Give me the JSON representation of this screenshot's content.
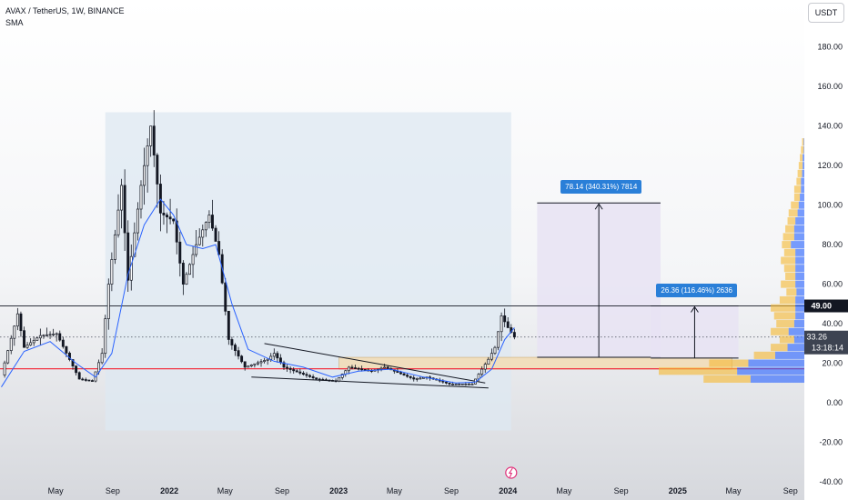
{
  "header": {
    "symbol_line": "AVAX / TetherUS, 1W, BINANCE",
    "indicator": "SMA",
    "currency_button": "USDT"
  },
  "badges": {
    "level": "49.00",
    "last_price": "33.26",
    "countdown": "13:18:14"
  },
  "measures": [
    {
      "label": "78.14 (340.31%) 7814",
      "start": 23.0,
      "end": 101.1
    },
    {
      "label": "26.36 (116.46%) 2636",
      "start": 22.6,
      "end": 49.0
    }
  ],
  "chart_data": {
    "type": "candlestick",
    "ylim": [
      -40,
      190
    ],
    "y_ticks": [
      180,
      160,
      140,
      120,
      100,
      80,
      60,
      40,
      20,
      0,
      -20,
      -40
    ],
    "y_tick_labels": [
      "180.00",
      "160.00",
      "140.00",
      "120.00",
      "100.00",
      "80.00",
      "60.00",
      "40.00",
      "20.00",
      "0.00",
      "-20.00",
      "-40.00"
    ],
    "x_labels": [
      "May",
      "Sep",
      "2022",
      "May",
      "Sep",
      "2023",
      "May",
      "Sep",
      "2024",
      "May",
      "Sep",
      "2025",
      "May",
      "Sep"
    ],
    "x_label_dates": [
      "2021-05-01",
      "2021-09-01",
      "2022-01-01",
      "2022-05-01",
      "2022-09-01",
      "2023-01-01",
      "2023-05-01",
      "2023-09-01",
      "2024-01-01",
      "2024-05-01",
      "2024-09-01",
      "2025-01-01",
      "2025-05-01",
      "2025-09-01"
    ],
    "x_range": [
      "2021-01-01",
      "2025-10-01"
    ],
    "horizontal_levels": [
      {
        "value": 49.0,
        "color": "#131722"
      },
      {
        "value": 17.2,
        "color": "#f23645"
      }
    ],
    "last_price": 33.26,
    "key_points": [
      {
        "date": "2021-01-04",
        "price": 14
      },
      {
        "date": "2021-02-08",
        "price": 45
      },
      {
        "date": "2021-02-22",
        "price": 28
      },
      {
        "date": "2021-03-29",
        "price": 34
      },
      {
        "date": "2021-05-03",
        "price": 35
      },
      {
        "date": "2021-06-21",
        "price": 12
      },
      {
        "date": "2021-07-19",
        "price": 11
      },
      {
        "date": "2021-08-09",
        "price": 25
      },
      {
        "date": "2021-08-23",
        "price": 60
      },
      {
        "date": "2021-09-20",
        "price": 110
      },
      {
        "date": "2021-10-04",
        "price": 62
      },
      {
        "date": "2021-11-01",
        "price": 110
      },
      {
        "date": "2021-11-22",
        "price": 140
      },
      {
        "date": "2021-12-13",
        "price": 96
      },
      {
        "date": "2022-01-10",
        "price": 92
      },
      {
        "date": "2022-01-31",
        "price": 60
      },
      {
        "date": "2022-02-28",
        "price": 80
      },
      {
        "date": "2022-03-28",
        "price": 95
      },
      {
        "date": "2022-04-18",
        "price": 75
      },
      {
        "date": "2022-05-09",
        "price": 32
      },
      {
        "date": "2022-06-13",
        "price": 18
      },
      {
        "date": "2022-08-01",
        "price": 22
      },
      {
        "date": "2022-08-15",
        "price": 25
      },
      {
        "date": "2022-09-05",
        "price": 18
      },
      {
        "date": "2022-11-14",
        "price": 12
      },
      {
        "date": "2022-12-26",
        "price": 11
      },
      {
        "date": "2023-01-23",
        "price": 18
      },
      {
        "date": "2023-03-13",
        "price": 16
      },
      {
        "date": "2023-04-10",
        "price": 18
      },
      {
        "date": "2023-06-12",
        "price": 12
      },
      {
        "date": "2023-07-10",
        "price": 13
      },
      {
        "date": "2023-08-28",
        "price": 9.5
      },
      {
        "date": "2023-10-16",
        "price": 9.5
      },
      {
        "date": "2023-11-06",
        "price": 17
      },
      {
        "date": "2023-11-20",
        "price": 22
      },
      {
        "date": "2023-12-04",
        "price": 28
      },
      {
        "date": "2023-12-18",
        "price": 44
      },
      {
        "date": "2024-01-01",
        "price": 38
      },
      {
        "date": "2024-01-15",
        "price": 33.26
      }
    ],
    "sma_points": [
      {
        "date": "2021-01-04",
        "price": 8
      },
      {
        "date": "2021-02-22",
        "price": 26
      },
      {
        "date": "2021-04-19",
        "price": 31
      },
      {
        "date": "2021-06-14",
        "price": 20
      },
      {
        "date": "2021-07-26",
        "price": 13
      },
      {
        "date": "2021-08-30",
        "price": 25
      },
      {
        "date": "2021-10-04",
        "price": 65
      },
      {
        "date": "2021-11-08",
        "price": 90
      },
      {
        "date": "2021-12-13",
        "price": 103
      },
      {
        "date": "2022-01-10",
        "price": 95
      },
      {
        "date": "2022-02-07",
        "price": 80
      },
      {
        "date": "2022-03-14",
        "price": 78
      },
      {
        "date": "2022-04-11",
        "price": 80
      },
      {
        "date": "2022-05-16",
        "price": 50
      },
      {
        "date": "2022-06-20",
        "price": 27
      },
      {
        "date": "2022-08-15",
        "price": 21
      },
      {
        "date": "2022-10-17",
        "price": 18
      },
      {
        "date": "2022-12-19",
        "price": 13
      },
      {
        "date": "2023-02-13",
        "price": 16
      },
      {
        "date": "2023-04-24",
        "price": 17
      },
      {
        "date": "2023-07-03",
        "price": 13
      },
      {
        "date": "2023-09-11",
        "price": 10
      },
      {
        "date": "2023-10-23",
        "price": 10.5
      },
      {
        "date": "2023-11-27",
        "price": 17
      },
      {
        "date": "2023-12-25",
        "price": 32
      },
      {
        "date": "2024-01-15",
        "price": 38
      }
    ],
    "series": [
      {
        "name": "SMA",
        "color": "#2962ff"
      }
    ]
  },
  "volume_profile": [
    {
      "price": 132,
      "total": 2,
      "up": 0.5
    },
    {
      "price": 128,
      "total": 3,
      "up": 0.5
    },
    {
      "price": 124,
      "total": 4,
      "up": 1.5
    },
    {
      "price": 120,
      "total": 5,
      "up": 1.5
    },
    {
      "price": 116,
      "total": 6,
      "up": 2
    },
    {
      "price": 112,
      "total": 7,
      "up": 3
    },
    {
      "price": 108,
      "total": 9,
      "up": 3
    },
    {
      "price": 104,
      "total": 9,
      "up": 4
    },
    {
      "price": 100,
      "total": 12,
      "up": 5
    },
    {
      "price": 96,
      "total": 14,
      "up": 6
    },
    {
      "price": 92,
      "total": 15,
      "up": 8
    },
    {
      "price": 88,
      "total": 17,
      "up": 9
    },
    {
      "price": 84,
      "total": 19,
      "up": 9
    },
    {
      "price": 80,
      "total": 20,
      "up": 12
    },
    {
      "price": 76,
      "total": 18,
      "up": 8
    },
    {
      "price": 72,
      "total": 21,
      "up": 8
    },
    {
      "price": 68,
      "total": 18,
      "up": 8
    },
    {
      "price": 64,
      "total": 17,
      "up": 8
    },
    {
      "price": 60,
      "total": 21,
      "up": 8
    },
    {
      "price": 56,
      "total": 16,
      "up": 7
    },
    {
      "price": 52,
      "total": 22,
      "up": 8
    },
    {
      "price": 48,
      "total": 30,
      "up": 8
    },
    {
      "price": 44,
      "total": 27,
      "up": 8
    },
    {
      "price": 40,
      "total": 25,
      "up": 9
    },
    {
      "price": 36,
      "total": 30,
      "up": 14
    },
    {
      "price": 32,
      "total": 22,
      "up": 9
    },
    {
      "price": 28,
      "total": 30,
      "up": 15
    },
    {
      "price": 24,
      "total": 45,
      "up": 26
    },
    {
      "price": 20,
      "total": 85,
      "up": 50
    },
    {
      "price": 16,
      "total": 130,
      "up": 60
    },
    {
      "price": 12,
      "total": 90,
      "up": 48
    }
  ],
  "colors": {
    "up": "#26a69a",
    "down": "#ef5350",
    "candle": "#131722",
    "sma": "#2962ff",
    "support": "#f23645",
    "vp_up": "#2962ff",
    "vp_down": "#f5b935",
    "measure_fill": "#e8e3f3",
    "measure_label": "#2a7fd8"
  }
}
